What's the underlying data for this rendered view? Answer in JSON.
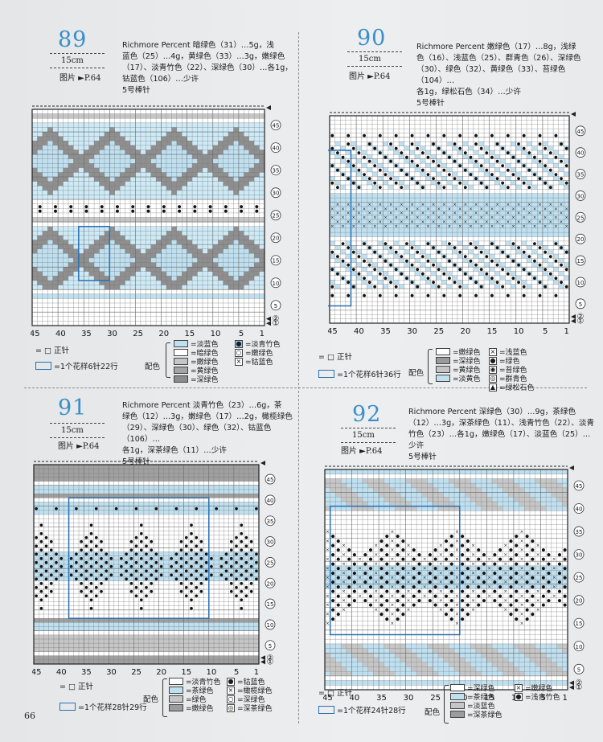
{
  "page": {
    "folio": "66"
  },
  "patterns": [
    {
      "id": "p89",
      "number": "89",
      "size": "15cm",
      "photo": "图片 ►P.64",
      "desc": [
        "Richmore Percent 暗绿色（31）…5g，浅",
        "蓝色（25）…4g，黄绿色（33）…3g，嫩绿色",
        "（17）、淡青竹色（22）、深绿色（30）…各1g，",
        "钴蓝色（106）…少许",
        "5号棒针"
      ],
      "xlabels": [
        "45",
        "40",
        "35",
        "30",
        "25",
        "20",
        "15",
        "10",
        "5",
        "1"
      ],
      "ylabels": [
        "45",
        "40",
        "35",
        "30",
        "25",
        "20",
        "15",
        "10",
        "5",
        "②",
        "①"
      ],
      "legend_knit": "= □ 正针",
      "legend_repeat": "=1个花样6针22行",
      "legend_cfg": "配色",
      "colors_left": [
        {
          "label": "=淡蓝色",
          "color": "#bfe0f0"
        },
        {
          "label": "=暗绿色",
          "color": "#ffffff"
        },
        {
          "label": "=嫩绿色",
          "color": "#c6c6c6"
        },
        {
          "label": "=黄绿色",
          "color": "#a4a4a4"
        },
        {
          "label": "=深绿色",
          "color": "#8c8c8c"
        }
      ],
      "colors_right": [
        {
          "label": "=淡青竹色",
          "sym": "●",
          "color": "#8fc8e8"
        },
        {
          "label": "=嫩绿色",
          "sym": "○"
        },
        {
          "label": "=钴蓝色",
          "sym": "×"
        }
      ]
    },
    {
      "id": "p90",
      "number": "90",
      "size": "15cm",
      "photo": "图片 ►P.64",
      "desc": [
        "Richmore Percent 嫩绿色（17）…8g，浅绿",
        "色（16）、浅蓝色（25）、群青色（26）、深绿色",
        "（30）、绿色（32）、黄绿色（33）、苔绿色（104）…",
        "各1g，绿松石色（34）…少许",
        "5号棒针"
      ],
      "xlabels": [
        "45",
        "40",
        "35",
        "30",
        "25",
        "20",
        "15",
        "10",
        "5",
        "1"
      ],
      "ylabels": [
        "45",
        "40",
        "35",
        "30",
        "25",
        "20",
        "15",
        "10",
        "5",
        "②",
        "①"
      ],
      "legend_knit": "= □ 正针",
      "legend_repeat": "=1个花样6针36行",
      "legend_cfg": "配色",
      "colors_left": [
        {
          "label": "=嫩绿色",
          "color": "#ffffff"
        },
        {
          "label": "=深绿色",
          "color": "#9a9a9a"
        },
        {
          "label": "=黄绿色",
          "color": "#c4c4c4"
        },
        {
          "label": "=淡黄色",
          "color": "#bfe0f0"
        }
      ],
      "colors_right": [
        {
          "label": "=浅蓝色",
          "sym": "×"
        },
        {
          "label": "=绿色",
          "sym": "●"
        },
        {
          "label": "=苔绿色",
          "sym": "◉"
        },
        {
          "label": "=群青色",
          "sym": "◎"
        },
        {
          "label": "=绿松石色",
          "sym": "▲"
        }
      ]
    },
    {
      "id": "p91",
      "number": "91",
      "size": "15cm",
      "photo": "图片 ►P.64",
      "desc": [
        "Richmore Percent 淡青竹色（23）…6g，茶",
        "绿色（12）…3g，嫩绿色（17）…2g，橄榄绿色",
        "（29）、深绿色（30）、绿色（32）、钴蓝色（106）…",
        "各1g，深茶绿色（11）…少许",
        "5号棒针"
      ],
      "xlabels": [
        "45",
        "40",
        "35",
        "30",
        "25",
        "20",
        "15",
        "10",
        "5",
        "1"
      ],
      "ylabels": [
        "45",
        "40",
        "35",
        "30",
        "25",
        "20",
        "15",
        "10",
        "5",
        "②",
        "①"
      ],
      "legend_knit": "= □ 正针",
      "legend_repeat": "=1个花样28针29行",
      "legend_cfg": "配色",
      "colors_left": [
        {
          "label": "=淡青竹色",
          "color": "#ffffff"
        },
        {
          "label": "=茶绿色",
          "color": "#bfe0f0"
        },
        {
          "label": "=绿色",
          "color": "#c6c6c6"
        },
        {
          "label": "=嫩绿色",
          "color": "#9c9c9c"
        }
      ],
      "colors_right": [
        {
          "label": "=钴蓝色",
          "sym": "●"
        },
        {
          "label": "=橄榄绿色",
          "sym": "×"
        },
        {
          "label": "=深绿色",
          "sym": "○"
        },
        {
          "label": "=深茶绿色",
          "sym": "◎"
        }
      ]
    },
    {
      "id": "p92",
      "number": "92",
      "size": "15cm",
      "photo": "图片 ►P.64",
      "desc": [
        "Richmore Percent 深绿色（30）…9g，茶绿色",
        "（12）…3g，深茶绿色（11）、浅青竹色（22）、淡青",
        "竹色（23）…各1g，嫩绿色（17）、淡蓝色（25）…",
        "少许",
        "5号棒针"
      ],
      "xlabels": [
        "45",
        "40",
        "35",
        "30",
        "25",
        "20",
        "15",
        "10",
        "5",
        "1"
      ],
      "ylabels": [
        "45",
        "40",
        "35",
        "30",
        "25",
        "20",
        "15",
        "10",
        "5",
        "②",
        "①"
      ],
      "legend_knit": "= □ 正针",
      "legend_repeat": "=1个花样24针28行",
      "legend_cfg": "配色",
      "colors_left": [
        {
          "label": "=深绿色",
          "color": "#ffffff"
        },
        {
          "label": "=茶绿色",
          "color": "#bfe0f0"
        },
        {
          "label": "=淡蓝色",
          "color": "#c6c6c6"
        },
        {
          "label": "=深茶绿色",
          "color": "#9c9c9c"
        }
      ],
      "colors_right": [
        {
          "label": "=嫩绿色",
          "sym": "×"
        },
        {
          "label": "=浅青竹色",
          "sym": "●"
        }
      ]
    }
  ]
}
